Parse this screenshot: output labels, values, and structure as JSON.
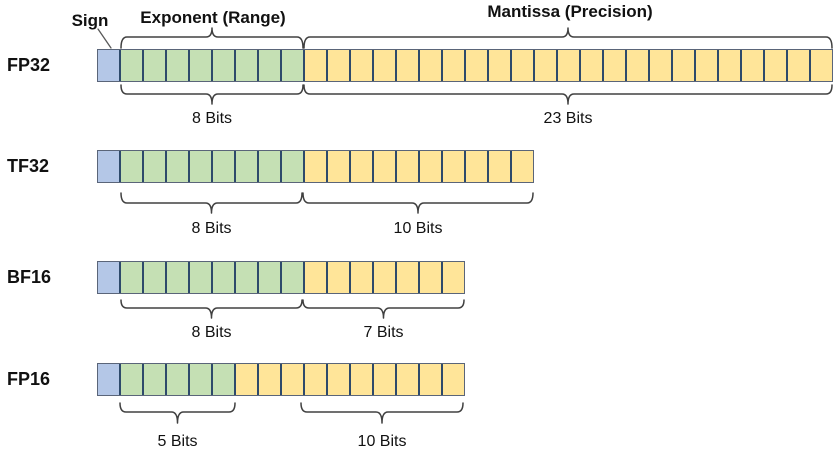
{
  "header": {
    "sign_label": "Sign",
    "exponent_label": "Exponent (Range)",
    "mantissa_label": "Mantissa (Precision)"
  },
  "colors": {
    "sign_fill": "#b4c7e7",
    "exponent_fill": "#c5e0b4",
    "mantissa_fill": "#ffe599",
    "cell_border": "#2e4a6b",
    "row_outline": "#5a6579",
    "brace_stroke": "#404040",
    "pointer_line": "#595959",
    "text": "#111111"
  },
  "formats": [
    {
      "name": "FP32",
      "sign_bits": 1,
      "exponent_bits": 8,
      "mantissa_bits": 23,
      "exponent_bits_label": "8 Bits",
      "mantissa_bits_label": "23 Bits"
    },
    {
      "name": "TF32",
      "sign_bits": 1,
      "exponent_bits": 8,
      "mantissa_bits": 10,
      "exponent_bits_label": "8 Bits",
      "mantissa_bits_label": "10 Bits"
    },
    {
      "name": "BF16",
      "sign_bits": 1,
      "exponent_bits": 8,
      "mantissa_bits": 7,
      "exponent_bits_label": "8 Bits",
      "mantissa_bits_label": "7 Bits"
    },
    {
      "name": "FP16",
      "sign_bits": 1,
      "exponent_bits": 5,
      "mantissa_bits": 10,
      "exponent_bits_label": "5 Bits",
      "mantissa_bits_label": "10 Bits"
    }
  ]
}
